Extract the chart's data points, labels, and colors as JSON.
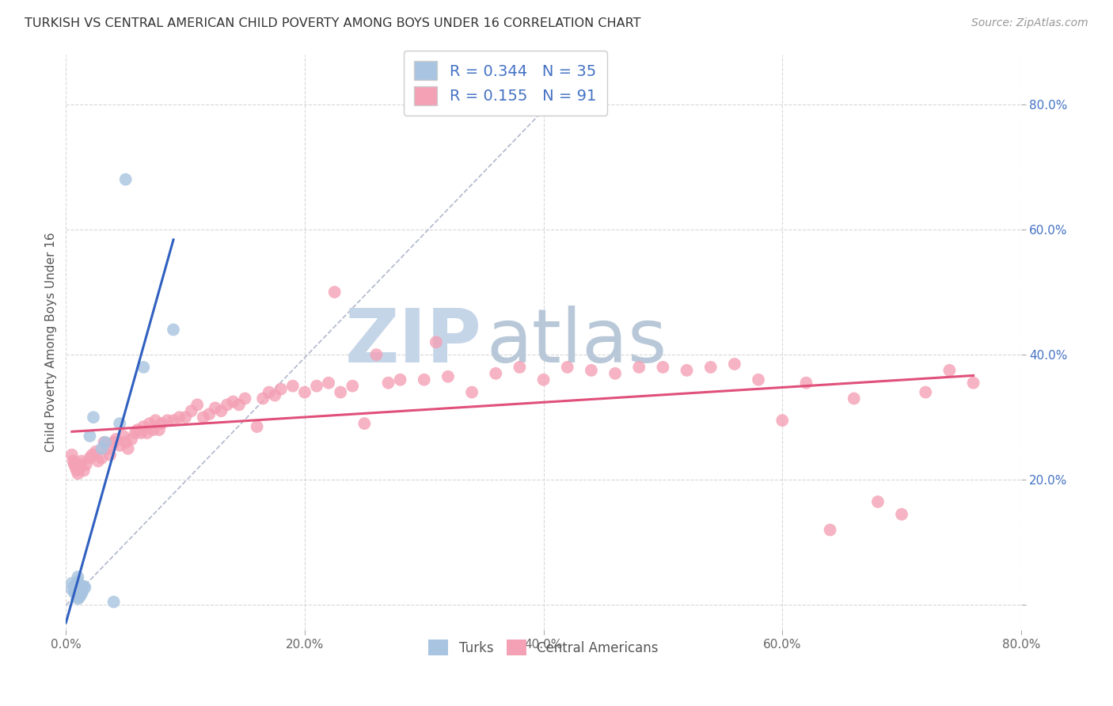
{
  "title": "TURKISH VS CENTRAL AMERICAN CHILD POVERTY AMONG BOYS UNDER 16 CORRELATION CHART",
  "source": "Source: ZipAtlas.com",
  "ylabel": "Child Poverty Among Boys Under 16",
  "xlim": [
    0.0,
    0.8
  ],
  "ylim": [
    -0.04,
    0.88
  ],
  "xticks": [
    0.0,
    0.2,
    0.4,
    0.6,
    0.8
  ],
  "yticks": [
    0.0,
    0.2,
    0.4,
    0.6,
    0.8
  ],
  "xticklabels": [
    "0.0%",
    "20.0%",
    "40.0%",
    "60.0%",
    "80.0%"
  ],
  "yticklabels": [
    "",
    "20.0%",
    "40.0%",
    "60.0%",
    "80.0%"
  ],
  "turks_R": 0.344,
  "turks_N": 35,
  "central_R": 0.155,
  "central_N": 91,
  "turks_color": "#a8c4e0",
  "central_color": "#f4a0b5",
  "turks_line_color": "#3060c0",
  "central_line_color": "#e0507a",
  "diagonal_color": "#b0b8cc",
  "watermark_zip": "ZIP",
  "watermark_atlas": "atlas",
  "watermark_color_zip": "#c5d5e8",
  "watermark_color_atlas": "#b8c8d8",
  "turks_x": [
    0.005,
    0.005,
    0.007,
    0.007,
    0.008,
    0.008,
    0.008,
    0.009,
    0.009,
    0.01,
    0.01,
    0.01,
    0.01,
    0.01,
    0.01,
    0.011,
    0.011,
    0.011,
    0.012,
    0.012,
    0.012,
    0.013,
    0.013,
    0.014,
    0.015,
    0.016,
    0.02,
    0.023,
    0.03,
    0.033,
    0.04,
    0.045,
    0.05,
    0.065,
    0.09
  ],
  "turks_y": [
    0.025,
    0.035,
    0.02,
    0.03,
    0.018,
    0.025,
    0.032,
    0.015,
    0.022,
    0.01,
    0.018,
    0.025,
    0.03,
    0.038,
    0.045,
    0.012,
    0.022,
    0.03,
    0.015,
    0.022,
    0.028,
    0.018,
    0.025,
    0.022,
    0.03,
    0.028,
    0.27,
    0.3,
    0.25,
    0.26,
    0.005,
    0.29,
    0.68,
    0.38,
    0.44
  ],
  "central_x": [
    0.005,
    0.006,
    0.007,
    0.008,
    0.009,
    0.01,
    0.011,
    0.012,
    0.013,
    0.015,
    0.017,
    0.02,
    0.022,
    0.025,
    0.027,
    0.03,
    0.032,
    0.035,
    0.037,
    0.04,
    0.042,
    0.045,
    0.048,
    0.05,
    0.052,
    0.055,
    0.058,
    0.06,
    0.063,
    0.065,
    0.068,
    0.07,
    0.073,
    0.075,
    0.078,
    0.08,
    0.085,
    0.09,
    0.095,
    0.1,
    0.105,
    0.11,
    0.115,
    0.12,
    0.125,
    0.13,
    0.135,
    0.14,
    0.145,
    0.15,
    0.16,
    0.165,
    0.17,
    0.175,
    0.18,
    0.19,
    0.2,
    0.21,
    0.22,
    0.225,
    0.23,
    0.24,
    0.25,
    0.26,
    0.27,
    0.28,
    0.3,
    0.31,
    0.32,
    0.34,
    0.36,
    0.38,
    0.4,
    0.42,
    0.44,
    0.46,
    0.48,
    0.5,
    0.52,
    0.54,
    0.56,
    0.58,
    0.6,
    0.62,
    0.64,
    0.66,
    0.68,
    0.7,
    0.72,
    0.74,
    0.76
  ],
  "central_y": [
    0.24,
    0.23,
    0.225,
    0.22,
    0.215,
    0.21,
    0.225,
    0.22,
    0.23,
    0.215,
    0.225,
    0.235,
    0.24,
    0.245,
    0.23,
    0.235,
    0.26,
    0.25,
    0.24,
    0.26,
    0.265,
    0.255,
    0.27,
    0.26,
    0.25,
    0.265,
    0.275,
    0.28,
    0.275,
    0.285,
    0.275,
    0.29,
    0.28,
    0.295,
    0.28,
    0.29,
    0.295,
    0.295,
    0.3,
    0.3,
    0.31,
    0.32,
    0.3,
    0.305,
    0.315,
    0.31,
    0.32,
    0.325,
    0.32,
    0.33,
    0.285,
    0.33,
    0.34,
    0.335,
    0.345,
    0.35,
    0.34,
    0.35,
    0.355,
    0.5,
    0.34,
    0.35,
    0.29,
    0.4,
    0.355,
    0.36,
    0.36,
    0.42,
    0.365,
    0.34,
    0.37,
    0.38,
    0.36,
    0.38,
    0.375,
    0.37,
    0.38,
    0.38,
    0.375,
    0.38,
    0.385,
    0.36,
    0.295,
    0.355,
    0.12,
    0.33,
    0.165,
    0.145,
    0.34,
    0.375,
    0.355
  ]
}
